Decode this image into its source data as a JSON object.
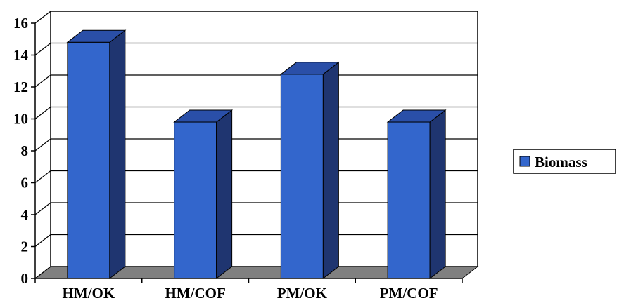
{
  "chart_data": {
    "type": "bar",
    "style": "3d",
    "categories": [
      "HM/OK",
      "HM/COF",
      "PM/OK",
      "PM/COF"
    ],
    "series": [
      {
        "name": "Biomass",
        "values": [
          14.8,
          9.8,
          12.8,
          9.8
        ],
        "color": "#3366cc"
      }
    ],
    "y_ticks": [
      "0",
      "2",
      "4",
      "6",
      "8",
      "10",
      "12",
      "14",
      "16"
    ],
    "ylim": [
      0,
      16
    ],
    "grid": true,
    "legend_position": "right",
    "colors": {
      "bar_front": "#3366cc",
      "bar_side": "#1f3570",
      "bar_top": "#2a4fa8",
      "floor": "#808080",
      "grid": "#000000"
    }
  }
}
